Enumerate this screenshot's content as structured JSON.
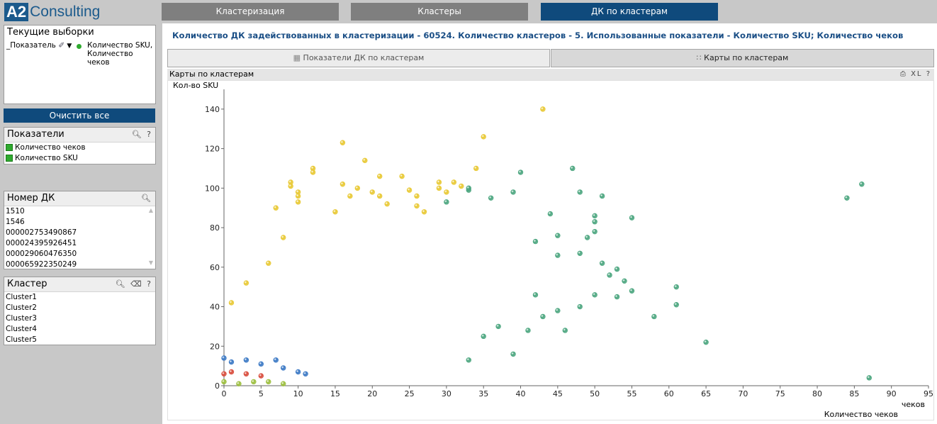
{
  "logo": {
    "a2": "A2",
    "name": "Consulting"
  },
  "nav": [
    {
      "label": "Кластеризация",
      "active": false
    },
    {
      "label": "Кластеры",
      "active": false
    },
    {
      "label": "ДК по кластерам",
      "active": true
    }
  ],
  "current_selections": {
    "title": "Текущие выборки",
    "field": "_Показатель",
    "value_line1": "Количество SKU,",
    "value_line2": "Количество чеков"
  },
  "clear_all": "Очистить все",
  "indicators": {
    "title": "Показатели",
    "items": [
      "Количество чеков",
      "Количество SKU"
    ]
  },
  "card_numbers": {
    "title": "Номер ДК",
    "items": [
      "1510",
      "1546",
      "000002753490867",
      "000024395926451",
      "000029060476350",
      "000065922350249"
    ]
  },
  "clusters": {
    "title": "Кластер",
    "items": [
      "Cluster1",
      "Cluster2",
      "Cluster3",
      "Cluster4",
      "Cluster5"
    ]
  },
  "headline": "Количество ДК задействованных в кластеризации - 60524. Количество кластеров - 5. Использованные показатели - Количество SKU; Количество чеков",
  "tabs": [
    "Показатели ДК по кластерам",
    "Карты по кластерам"
  ],
  "chart_caption": "Карты по кластерам",
  "chart_caption_icons": "XL ?",
  "chart_data": {
    "type": "scatter",
    "ylabel": "Кол-во SKU",
    "xlabel": "Количество чеков",
    "xlabel_short": "чеков",
    "xlim": [
      0,
      95
    ],
    "ylim": [
      0,
      150
    ],
    "xticks": [
      0,
      5,
      10,
      15,
      20,
      25,
      30,
      35,
      40,
      45,
      50,
      55,
      60,
      65,
      70,
      75,
      80,
      85,
      90,
      95
    ],
    "yticks": [
      0,
      20,
      40,
      60,
      80,
      100,
      120,
      140
    ],
    "grid": false,
    "series": [
      {
        "color": "#e8c832",
        "points": [
          [
            43,
            140
          ],
          [
            16,
            123
          ],
          [
            35,
            126
          ],
          [
            19,
            114
          ],
          [
            12,
            110
          ],
          [
            12,
            108
          ],
          [
            21,
            106
          ],
          [
            34,
            110
          ],
          [
            24,
            106
          ],
          [
            25,
            99
          ],
          [
            29,
            103
          ],
          [
            31,
            103
          ],
          [
            32,
            101
          ],
          [
            9,
            103
          ],
          [
            9,
            101
          ],
          [
            10,
            98
          ],
          [
            16,
            102
          ],
          [
            18,
            100
          ],
          [
            29,
            100
          ],
          [
            30,
            98
          ],
          [
            10,
            96
          ],
          [
            17,
            96
          ],
          [
            20,
            98
          ],
          [
            21,
            96
          ],
          [
            26,
            96
          ],
          [
            26,
            91
          ],
          [
            10,
            93
          ],
          [
            7,
            90
          ],
          [
            1,
            42
          ],
          [
            3,
            52
          ],
          [
            6,
            62
          ],
          [
            8,
            75
          ],
          [
            15,
            88
          ],
          [
            22,
            92
          ],
          [
            27,
            88
          ]
        ]
      },
      {
        "color": "#4aa57e",
        "points": [
          [
            47,
            110
          ],
          [
            40,
            108
          ],
          [
            84,
            95
          ],
          [
            86,
            102
          ],
          [
            51,
            96
          ],
          [
            48,
            98
          ],
          [
            39,
            98
          ],
          [
            36,
            95
          ],
          [
            33,
            99
          ],
          [
            30,
            93
          ],
          [
            33,
            100
          ],
          [
            55,
            85
          ],
          [
            50,
            86
          ],
          [
            50,
            83
          ],
          [
            44,
            87
          ],
          [
            50,
            78
          ],
          [
            49,
            75
          ],
          [
            45,
            76
          ],
          [
            42,
            73
          ],
          [
            55,
            48
          ],
          [
            61,
            50
          ],
          [
            61,
            41
          ],
          [
            58,
            35
          ],
          [
            65,
            22
          ],
          [
            87,
            4
          ],
          [
            53,
            59
          ],
          [
            51,
            62
          ],
          [
            45,
            66
          ],
          [
            48,
            67
          ],
          [
            52,
            56
          ],
          [
            54,
            53
          ],
          [
            53,
            45
          ],
          [
            50,
            46
          ],
          [
            48,
            40
          ],
          [
            46,
            28
          ],
          [
            39,
            16
          ],
          [
            33,
            13
          ],
          [
            35,
            25
          ],
          [
            37,
            30
          ],
          [
            41,
            28
          ],
          [
            43,
            35
          ],
          [
            45,
            38
          ],
          [
            42,
            46
          ]
        ]
      },
      {
        "color": "#3a78c4",
        "points": [
          [
            0,
            14
          ],
          [
            1,
            12
          ],
          [
            3,
            13
          ],
          [
            5,
            11
          ],
          [
            7,
            13
          ],
          [
            8,
            9
          ],
          [
            10,
            7
          ],
          [
            11,
            6
          ]
        ]
      },
      {
        "color": "#d84a3a",
        "points": [
          [
            0,
            6
          ],
          [
            1,
            7
          ],
          [
            3,
            6
          ],
          [
            5,
            5
          ]
        ]
      },
      {
        "color": "#9bbe3c",
        "points": [
          [
            0,
            2
          ],
          [
            2,
            1
          ],
          [
            4,
            2
          ],
          [
            6,
            2
          ],
          [
            8,
            1
          ]
        ]
      }
    ]
  }
}
